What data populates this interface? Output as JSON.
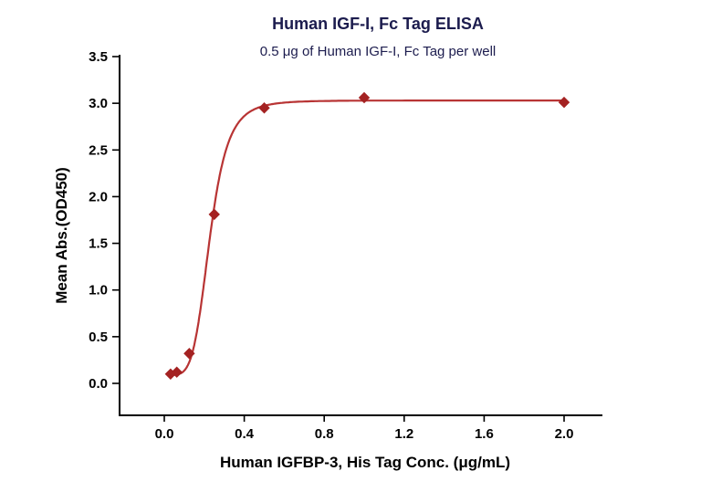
{
  "chart_data": {
    "type": "scatter",
    "title": "Human IGF-I, Fc Tag ELISA",
    "subtitle": "0.5 μg of Human IGF-I, Fc Tag per well",
    "xlabel": "Human IGFBP-3, His Tag Conc. (μg/mL)",
    "ylabel": "Mean Abs.(OD450)",
    "x": [
      0.03125,
      0.0625,
      0.125,
      0.25,
      0.5,
      1.0,
      2.0
    ],
    "y": [
      0.1,
      0.12,
      0.32,
      1.81,
      2.95,
      3.06,
      3.01
    ],
    "xlim": [
      0,
      2.2
    ],
    "ylim": [
      0,
      3.5
    ],
    "x_ticks": [
      {
        "v": 0.0,
        "label": "0.0"
      },
      {
        "v": 0.4,
        "label": "0.4"
      },
      {
        "v": 0.8,
        "label": "0.8"
      },
      {
        "v": 1.2,
        "label": "1.2"
      },
      {
        "v": 1.6,
        "label": "1.6"
      },
      {
        "v": 2.0,
        "label": "2.0"
      }
    ],
    "y_ticks": [
      {
        "v": 0.0,
        "label": "0.0"
      },
      {
        "v": 0.5,
        "label": "0.5"
      },
      {
        "v": 1.0,
        "label": "1.0"
      },
      {
        "v": 1.5,
        "label": "1.5"
      },
      {
        "v": 2.0,
        "label": "2.0"
      },
      {
        "v": 2.5,
        "label": "2.5"
      },
      {
        "v": 3.0,
        "label": "3.0"
      },
      {
        "v": 3.5,
        "label": "3.5"
      }
    ],
    "fit": {
      "model": "4PL",
      "a": 0.09,
      "b": 5.0,
      "c": 0.228,
      "d": 3.03
    },
    "legend": "none",
    "grid": "off",
    "colors": {
      "line": "#b83434",
      "marker": "#a42222",
      "title": "#1c1c4e",
      "axis": "#000000"
    }
  }
}
